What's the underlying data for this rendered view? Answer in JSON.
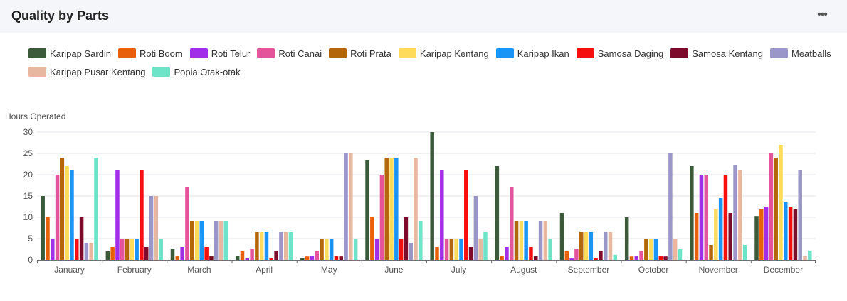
{
  "header": {
    "title": "Quality by Parts",
    "more_icon": "more-horizontal-icon"
  },
  "chart_data": {
    "type": "bar",
    "ylabel": "Hours Operated",
    "xlabel": "",
    "ylim": [
      0,
      30
    ],
    "yticks": [
      0,
      5,
      10,
      15,
      20,
      25,
      30
    ],
    "grid": true,
    "legend_position": "top",
    "categories": [
      "January",
      "February",
      "March",
      "April",
      "May",
      "June",
      "July",
      "August",
      "September",
      "October",
      "November",
      "December"
    ],
    "series": [
      {
        "name": "Karipap Sardin",
        "color": "#3a5a3a",
        "values": [
          15,
          2,
          2.5,
          1,
          0.5,
          23.5,
          30,
          22,
          11,
          10,
          22,
          10.3
        ]
      },
      {
        "name": "Roti Boom",
        "color": "#e8600c",
        "values": [
          10,
          3,
          1,
          2,
          0.8,
          10,
          3,
          1,
          2,
          0.8,
          11,
          12
        ]
      },
      {
        "name": "Roti Telur",
        "color": "#a22fe8",
        "values": [
          5,
          21,
          3,
          0.5,
          1,
          5,
          21,
          3,
          0.5,
          1,
          20,
          12.5
        ]
      },
      {
        "name": "Roti Canai",
        "color": "#e4549a",
        "values": [
          20,
          5,
          17,
          2.5,
          2,
          20,
          5,
          17,
          2.5,
          2,
          20,
          25
        ]
      },
      {
        "name": "Roti Prata",
        "color": "#b3670a",
        "values": [
          24,
          5,
          9,
          6.5,
          5,
          24,
          5,
          9,
          6.5,
          5,
          3.5,
          24
        ]
      },
      {
        "name": "Karipap Kentang",
        "color": "#ffdb5c",
        "values": [
          22,
          5,
          9,
          6.5,
          5,
          24,
          5,
          9,
          6.5,
          5,
          12,
          27
        ]
      },
      {
        "name": "Karipap Ikan",
        "color": "#1a95f5",
        "values": [
          21,
          5,
          9,
          6.5,
          5,
          24,
          5,
          9,
          6.5,
          5,
          14.5,
          13.5
        ]
      },
      {
        "name": "Samosa Daging",
        "color": "#f50f0f",
        "values": [
          5,
          21,
          3,
          0.5,
          1,
          5,
          21,
          3,
          0.5,
          1,
          20,
          12.5
        ]
      },
      {
        "name": "Samosa Kentang",
        "color": "#7d0a2a",
        "values": [
          10,
          3,
          1,
          2,
          0.8,
          10,
          3,
          1,
          2,
          0.8,
          11,
          12
        ]
      },
      {
        "name": "Meatballs",
        "color": "#9a97c8",
        "values": [
          4,
          15,
          9,
          6.5,
          25,
          4,
          15,
          9,
          6.5,
          25,
          22.3,
          21
        ]
      },
      {
        "name": "Karipap Pusar Kentang",
        "color": "#e8b7a0",
        "values": [
          4,
          15,
          9,
          6.5,
          25,
          24,
          5,
          9,
          6.5,
          5,
          21,
          1
        ]
      },
      {
        "name": "Popia Otak-otak",
        "color": "#6de3c8",
        "values": [
          24,
          5,
          9,
          6.5,
          5,
          9,
          6.5,
          5,
          1.2,
          2.5,
          3.5,
          2.2
        ]
      }
    ]
  }
}
